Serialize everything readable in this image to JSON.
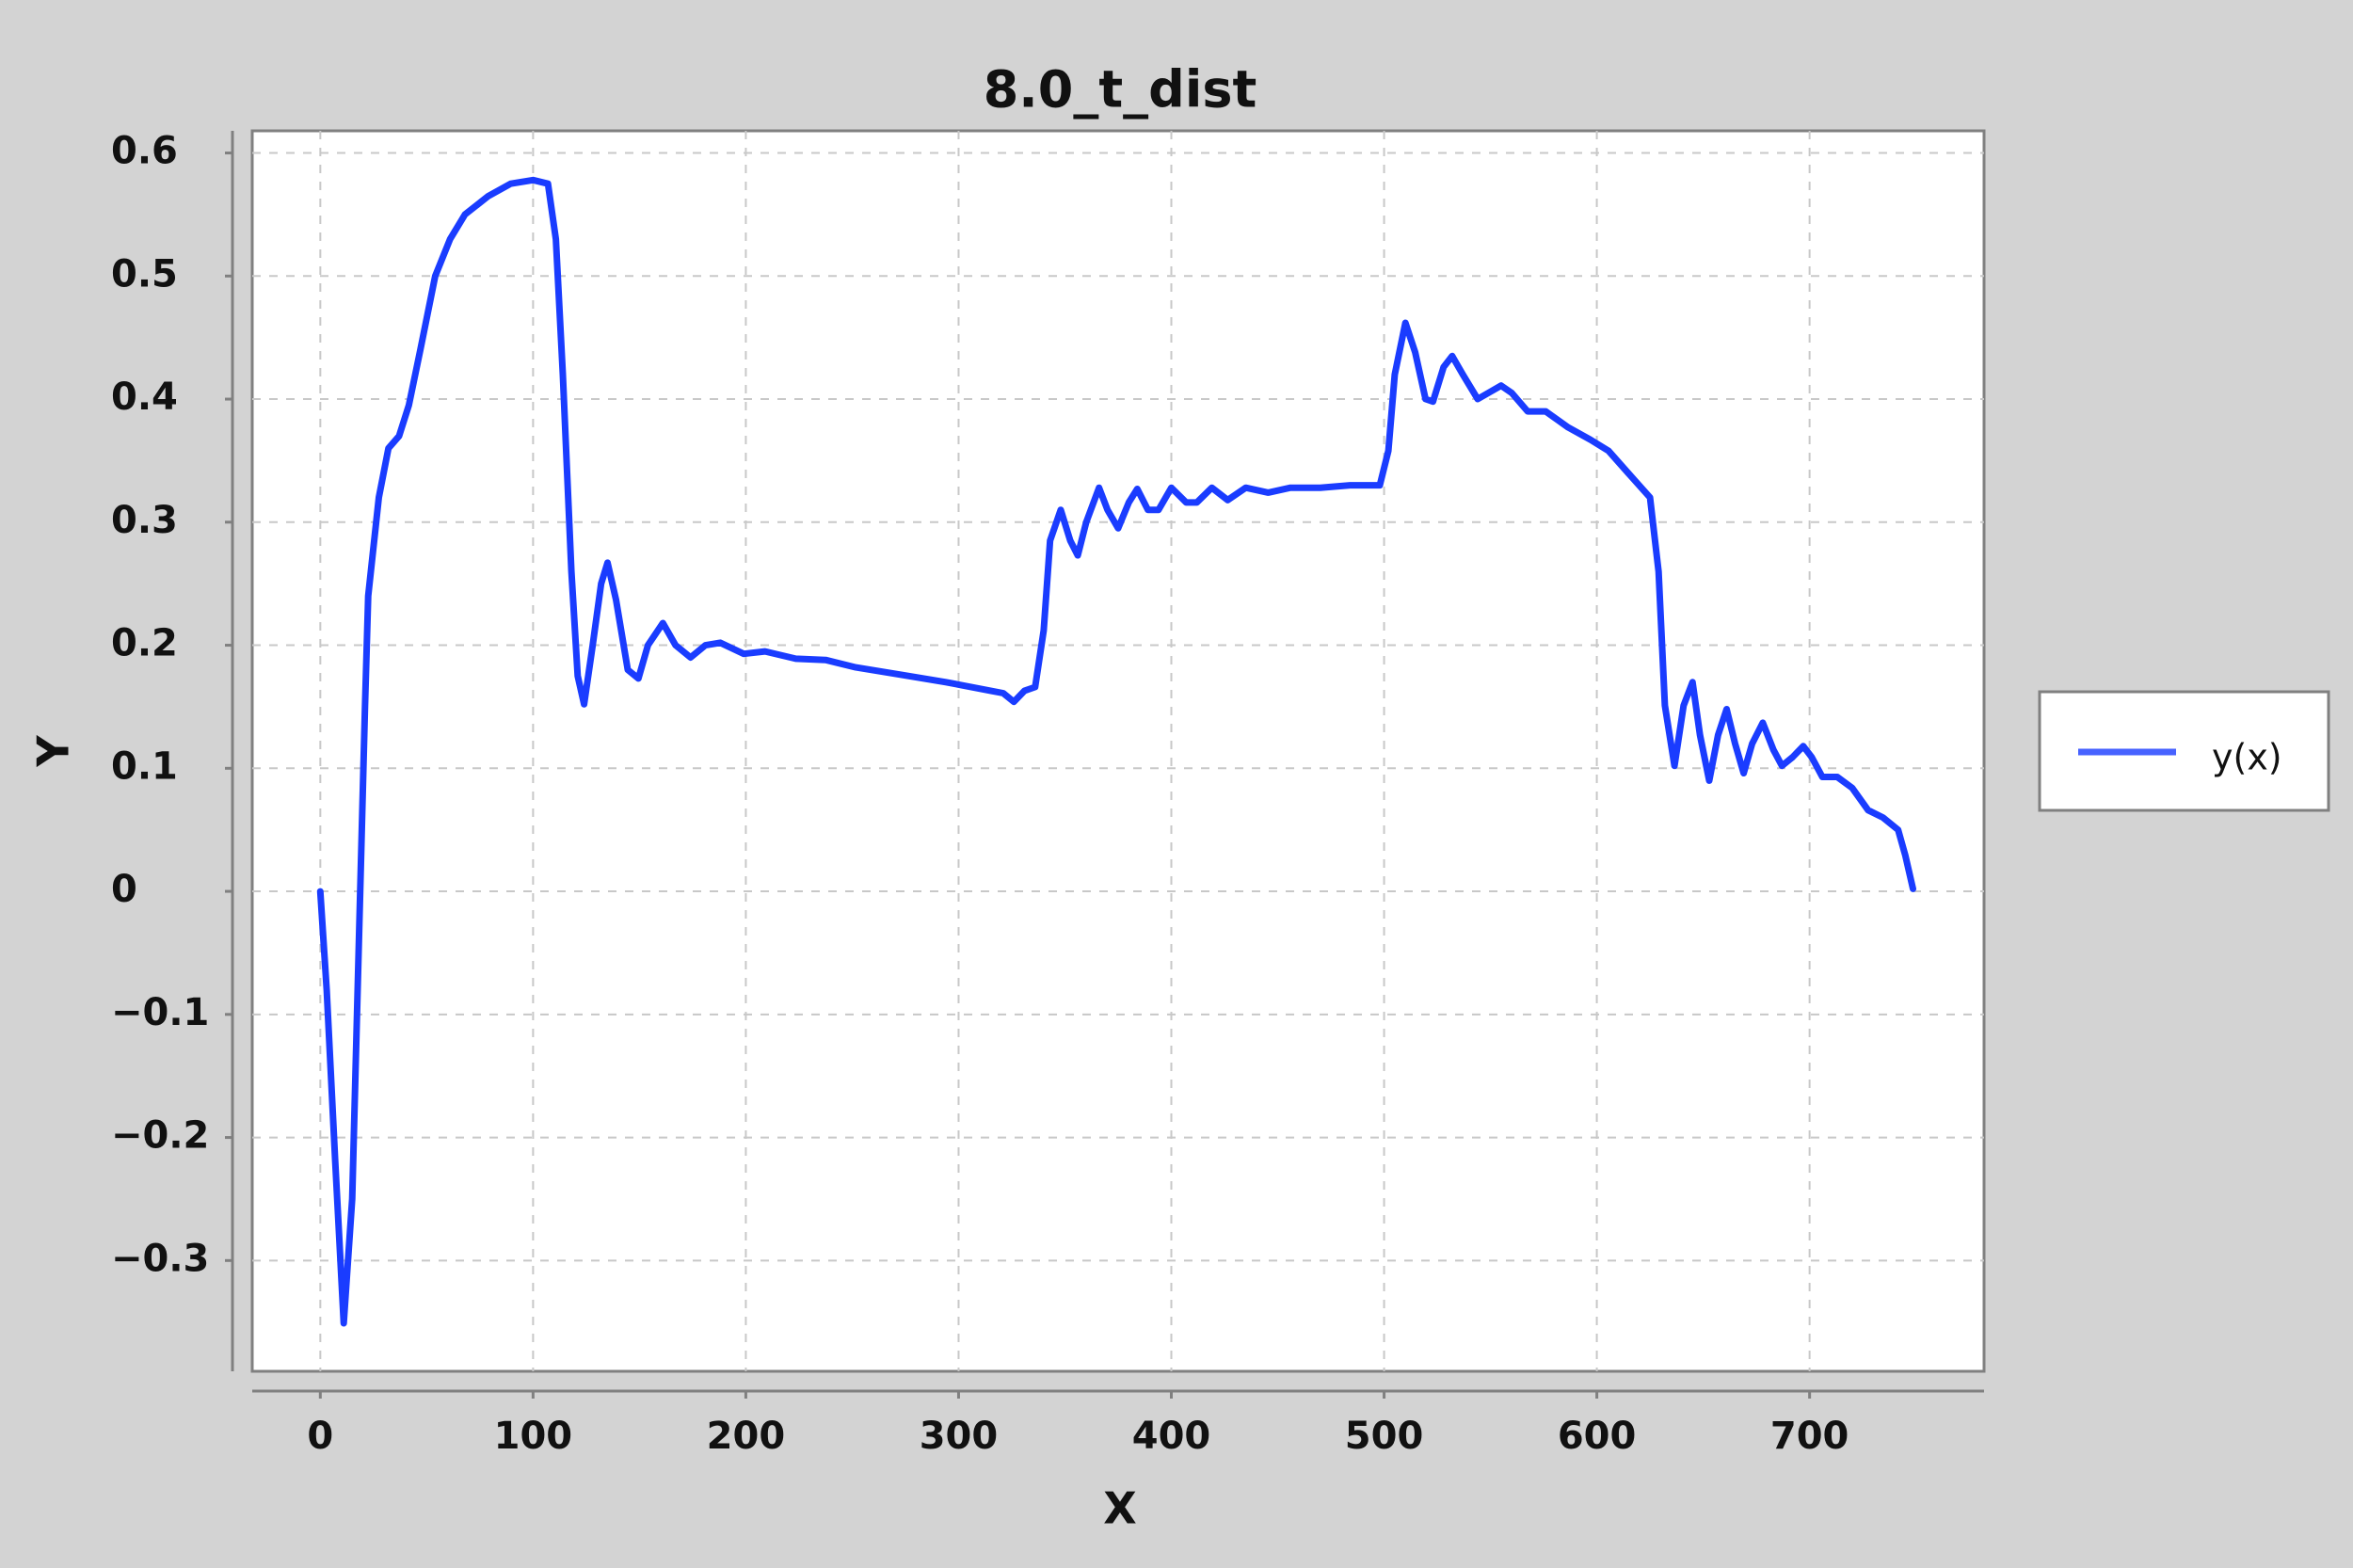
{
  "chart_data": {
    "type": "line",
    "title": "8.0_t_dist",
    "x_label": "X",
    "y_label": "Y",
    "xlim": [
      -32,
      782
    ],
    "ylim": [
      -0.39,
      0.618
    ],
    "xticks": [
      0,
      100,
      200,
      300,
      400,
      500,
      600,
      700
    ],
    "yticks": [
      {
        "value": -0.3,
        "label": "−0.3"
      },
      {
        "value": -0.2,
        "label": "−0.2"
      },
      {
        "value": -0.1,
        "label": "−0.1"
      },
      0,
      0.1,
      0.2,
      0.3,
      0.4,
      0.5,
      0.6
    ],
    "grid": true,
    "legend": "right",
    "series": [
      {
        "name": "y(x)",
        "color": "#1a3cff",
        "x": [
          0,
          3,
          7,
          11,
          15,
          18,
          21,
          22.5,
          27.5,
          32,
          37,
          41.6,
          47,
          54,
          61,
          68,
          79,
          89.5,
          100,
          107,
          110.7,
          114,
          118,
          121,
          124,
          128,
          132,
          135,
          139,
          144.5,
          149.5,
          154,
          161,
          167,
          174,
          181,
          188,
          199,
          209,
          223.5,
          237.5,
          251.7,
          273,
          294,
          315,
          321,
          326,
          331,
          336,
          340,
          343,
          348,
          352.5,
          356,
          360,
          366,
          370,
          375,
          380,
          384,
          389,
          394,
          400,
          407,
          412,
          419,
          426.5,
          435,
          445.5,
          456,
          470,
          484,
          498,
          502,
          505,
          510,
          514.6,
          519.5,
          523,
          528,
          532,
          537,
          544,
          549,
          555,
          560,
          567.5,
          576,
          586.5,
          597,
          605.5,
          614.7,
          625,
          629,
          632,
          636.5,
          640.8,
          645,
          648.5,
          652.8,
          657,
          661,
          665,
          669,
          673,
          678,
          683,
          687,
          692,
          697,
          701,
          706,
          713,
          720,
          727.5,
          734.5,
          741.6,
          745,
          748.6
        ],
        "values": [
          0,
          -0.08,
          -0.22,
          -0.351,
          -0.25,
          -0.05,
          0.15,
          0.24,
          0.32,
          0.36,
          0.37,
          0.395,
          0.44,
          0.5,
          0.53,
          0.55,
          0.565,
          0.575,
          0.578,
          0.575,
          0.53,
          0.42,
          0.26,
          0.175,
          0.152,
          0.2,
          0.25,
          0.267,
          0.237,
          0.18,
          0.173,
          0.2,
          0.218,
          0.2,
          0.19,
          0.2,
          0.202,
          0.193,
          0.195,
          0.189,
          0.188,
          0.182,
          0.176,
          0.17,
          0.163,
          0.161,
          0.154,
          0.163,
          0.166,
          0.212,
          0.285,
          0.31,
          0.285,
          0.273,
          0.3,
          0.328,
          0.31,
          0.295,
          0.316,
          0.327,
          0.31,
          0.31,
          0.328,
          0.316,
          0.316,
          0.328,
          0.318,
          0.328,
          0.324,
          0.328,
          0.328,
          0.33,
          0.33,
          0.358,
          0.42,
          0.462,
          0.438,
          0.4,
          0.398,
          0.426,
          0.435,
          0.42,
          0.4,
          0.405,
          0.411,
          0.405,
          0.39,
          0.39,
          0.377,
          0.367,
          0.358,
          0.34,
          0.32,
          0.26,
          0.151,
          0.102,
          0.151,
          0.17,
          0.127,
          0.09,
          0.127,
          0.148,
          0.12,
          0.096,
          0.12,
          0.137,
          0.115,
          0.102,
          0.109,
          0.118,
          0.109,
          0.093,
          0.093,
          0.084,
          0.066,
          0.06,
          0.05,
          0.029,
          0.002
        ]
      }
    ]
  }
}
